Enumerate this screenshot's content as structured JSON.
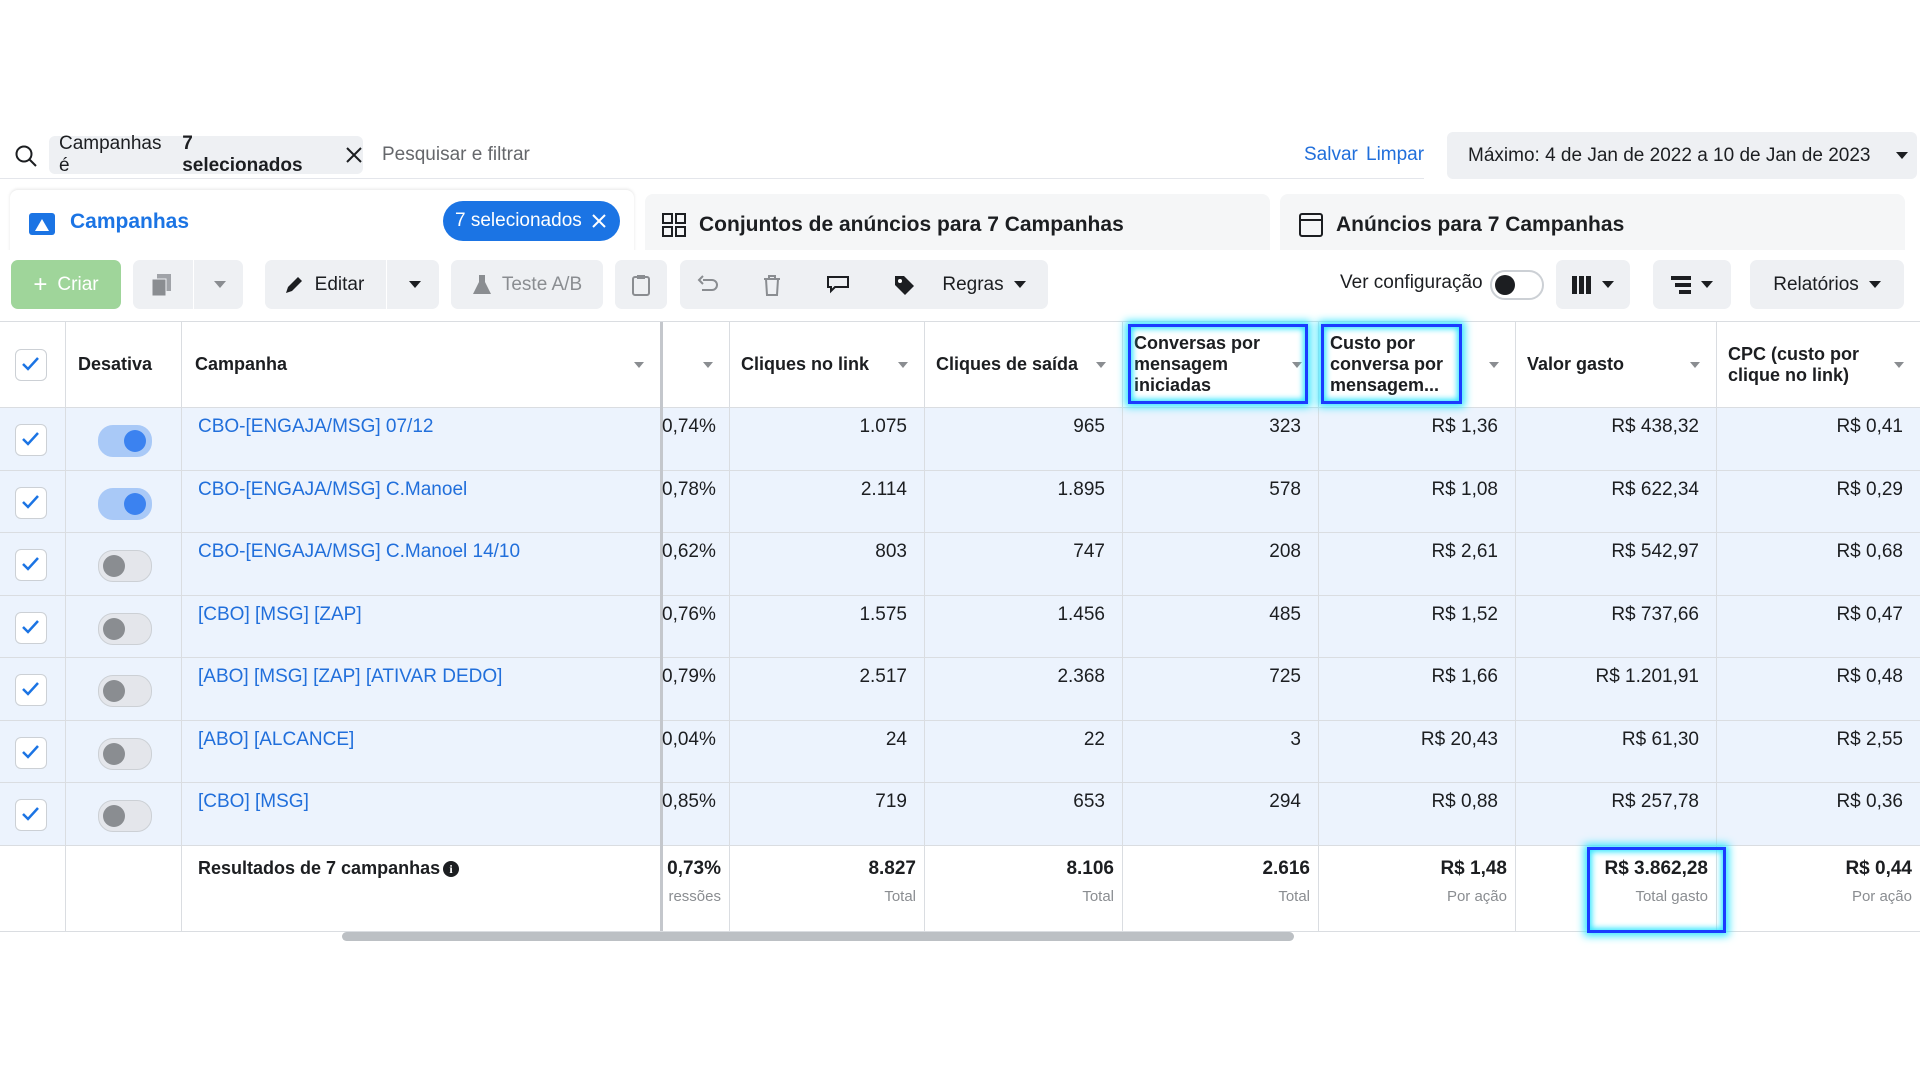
{
  "search": {
    "filter_label": "Campanhas é",
    "filter_value": "7 selecionados",
    "placeholder": "Pesquisar e filtrar",
    "save": "Salvar",
    "clear": "Limpar",
    "date_range": "Máximo: 4 de Jan de 2022 a 10 de Jan de 2023"
  },
  "tabs": [
    {
      "label": "Campanhas",
      "badge": "7 selecionados"
    },
    {
      "label": "Conjuntos de anúncios para 7 Campanhas"
    },
    {
      "label": "Anúncios para 7 Campanhas"
    }
  ],
  "toolbar": {
    "create": "Criar",
    "edit": "Editar",
    "ab_test": "Teste A/B",
    "rules": "Regras",
    "view_setting": "Ver configuração",
    "reports": "Relatórios"
  },
  "table": {
    "headers": {
      "status": "Desativa",
      "name": "Campanha",
      "link_clicks": "Cliques no link",
      "outbound_clicks": "Cliques de saída",
      "conversations": "Conversas por mensagem iniciadas",
      "cost_per_conversation": "Custo por conversa por mensagem...",
      "amount_spent": "Valor gasto",
      "cpc": "CPC (custo por clique no link)"
    },
    "rows": [
      {
        "active": true,
        "name": "CBO-[ENGAJA/MSG] 07/12",
        "ctr": "0,74%",
        "link_clicks": "1.075",
        "outbound_clicks": "965",
        "conversations": "323",
        "cost_per_conversation": "R$ 1,36",
        "amount_spent": "R$ 438,32",
        "cpc": "R$ 0,41"
      },
      {
        "active": true,
        "name": "CBO-[ENGAJA/MSG] C.Manoel",
        "ctr": "0,78%",
        "link_clicks": "2.114",
        "outbound_clicks": "1.895",
        "conversations": "578",
        "cost_per_conversation": "R$ 1,08",
        "amount_spent": "R$ 622,34",
        "cpc": "R$ 0,29"
      },
      {
        "active": false,
        "name": "CBO-[ENGAJA/MSG] C.Manoel 14/10",
        "ctr": "0,62%",
        "link_clicks": "803",
        "outbound_clicks": "747",
        "conversations": "208",
        "cost_per_conversation": "R$ 2,61",
        "amount_spent": "R$ 542,97",
        "cpc": "R$ 0,68"
      },
      {
        "active": false,
        "name": "[CBO] [MSG] [ZAP]",
        "ctr": "0,76%",
        "link_clicks": "1.575",
        "outbound_clicks": "1.456",
        "conversations": "485",
        "cost_per_conversation": "R$ 1,52",
        "amount_spent": "R$ 737,66",
        "cpc": "R$ 0,47"
      },
      {
        "active": false,
        "name": "[ABO] [MSG] [ZAP] [ATIVAR DEDO]",
        "ctr": "0,79%",
        "link_clicks": "2.517",
        "outbound_clicks": "2.368",
        "conversations": "725",
        "cost_per_conversation": "R$ 1,66",
        "amount_spent": "R$ 1.201,91",
        "cpc": "R$ 0,48"
      },
      {
        "active": false,
        "name": "[ABO] [ALCANCE]",
        "ctr": "0,04%",
        "link_clicks": "24",
        "outbound_clicks": "22",
        "conversations": "3",
        "cost_per_conversation": "R$ 20,43",
        "amount_spent": "R$ 61,30",
        "cpc": "R$ 2,55"
      },
      {
        "active": false,
        "name": "[CBO] [MSG]",
        "ctr": "0,85%",
        "link_clicks": "719",
        "outbound_clicks": "653",
        "conversations": "294",
        "cost_per_conversation": "R$ 0,88",
        "amount_spent": "R$ 257,78",
        "cpc": "R$ 0,36"
      }
    ],
    "totals": {
      "label": "Resultados de 7 campanhas",
      "ctr": {
        "value": "0,73%",
        "caption": "ressões"
      },
      "link_clicks": {
        "value": "8.827",
        "caption": "Total"
      },
      "outbound_clicks": {
        "value": "8.106",
        "caption": "Total"
      },
      "conversations": {
        "value": "2.616",
        "caption": "Total"
      },
      "cost_per_conversation": {
        "value": "R$ 1,48",
        "caption": "Por ação"
      },
      "amount_spent": {
        "value": "R$ 3.862,28",
        "caption": "Total gasto"
      },
      "cpc": {
        "value": "R$ 0,44",
        "caption": "Por ação"
      }
    }
  }
}
